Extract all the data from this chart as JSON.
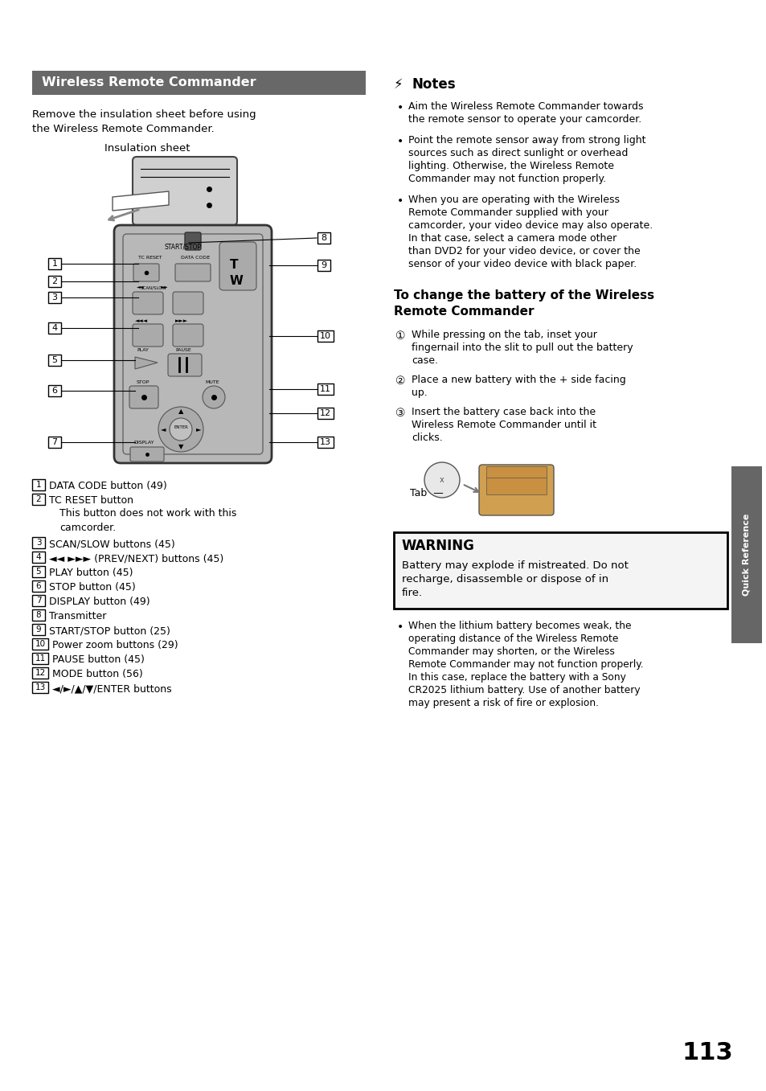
{
  "bg_color": "#ffffff",
  "page_num": "113",
  "title": "Wireless Remote Commander",
  "title_bg": "#686868",
  "title_fg": "#ffffff",
  "intro_text_line1": "Remove the insulation sheet before using",
  "intro_text_line2": "the Wireless Remote Commander.",
  "insulation_label": "Insulation sheet",
  "button_items": [
    {
      "num": "1",
      "text": "DATA CODE button (49)",
      "extra": []
    },
    {
      "num": "2",
      "text": "TC RESET button",
      "extra": [
        "This button does not work with this",
        "camcorder."
      ]
    },
    {
      "num": "3",
      "text": "SCAN/SLOW buttons (45)",
      "extra": []
    },
    {
      "num": "4",
      "text": "◄◄ ►►► (PREV/NEXT) buttons (45)",
      "extra": []
    },
    {
      "num": "5",
      "text": "PLAY button (45)",
      "extra": []
    },
    {
      "num": "6",
      "text": "STOP button (45)",
      "extra": []
    },
    {
      "num": "7",
      "text": "DISPLAY button (49)",
      "extra": []
    },
    {
      "num": "8",
      "text": "Transmitter",
      "extra": []
    },
    {
      "num": "9",
      "text": "START/STOP button (25)",
      "extra": []
    },
    {
      "num": "10",
      "text": "Power zoom buttons (29)",
      "extra": []
    },
    {
      "num": "11",
      "text": "PAUSE button (45)",
      "extra": []
    },
    {
      "num": "12",
      "text": "MODE button (56)",
      "extra": []
    },
    {
      "num": "13",
      "text": "◄/►/▲/▼/ENTER buttons",
      "extra": []
    }
  ],
  "notes_title": "Notes",
  "notes": [
    [
      "Aim the Wireless Remote Commander towards",
      "the remote sensor to operate your camcorder."
    ],
    [
      "Point the remote sensor away from strong light",
      "sources such as direct sunlight or overhead",
      "lighting. Otherwise, the Wireless Remote",
      "Commander may not function properly."
    ],
    [
      "When you are operating with the Wireless",
      "Remote Commander supplied with your",
      "camcorder, your video device may also operate.",
      "In that case, select a camera mode other",
      "than DVD2 for your video device, or cover the",
      "sensor of your video device with black paper."
    ]
  ],
  "battery_title_line1": "To change the battery of the Wireless",
  "battery_title_line2": "Remote Commander",
  "battery_steps": [
    [
      "While pressing on the tab, inset your",
      "fingernail into the slit to pull out the battery",
      "case."
    ],
    [
      "Place a new battery with the + side facing",
      "up."
    ],
    [
      "Insert the battery case back into the",
      "Wireless Remote Commander until it",
      "clicks."
    ]
  ],
  "tab_label": "Tab",
  "warning_title": "WARNING",
  "warning_lines": [
    "Battery may explode if mistreated. Do not",
    "recharge, disassemble or dispose of in",
    "fire."
  ],
  "warning_note_lines": [
    "When the lithium battery becomes weak, the",
    "operating distance of the Wireless Remote",
    "Commander may shorten, or the Wireless",
    "Remote Commander may not function properly.",
    "In this case, replace the battery with a Sony",
    "CR2025 lithium battery. Use of another battery",
    "may present a risk of fire or explosion."
  ],
  "sidebar_text": "Quick Reference"
}
